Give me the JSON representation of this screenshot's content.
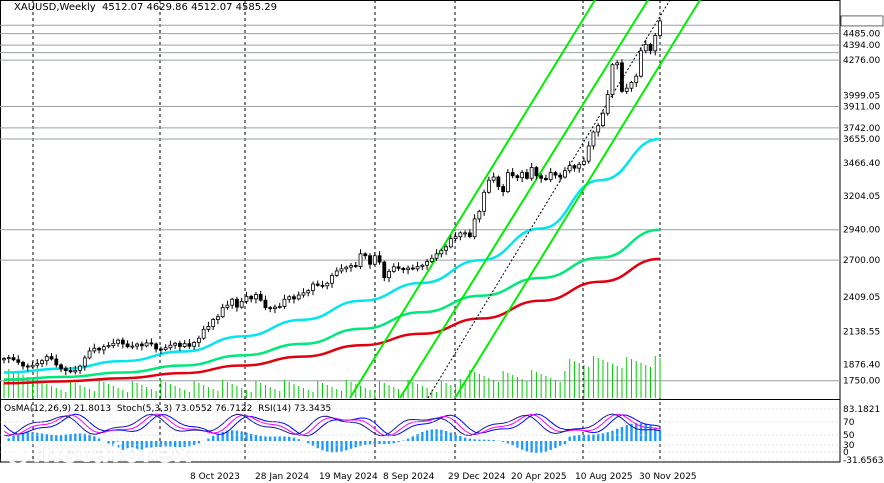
{
  "header": {
    "symbol": "XAUUSD,Weekly",
    "ohlc": "4512.07 4629.86 4512.07 4585.29"
  },
  "indicator_title": "OsMA(12,26,9) 21.8013  Stoch(5,3,3) 73.0552 76.7122  RSI(14) 73.3435",
  "watermark": {
    "brand": "instaforex",
    "tagline": "Instant Forex Trading"
  },
  "colors": {
    "ema_fast": "#00e5ee",
    "ema_mid": "#00e87a",
    "ema_slow": "#e0000f",
    "channel": "#00ee00",
    "volume": "#00cc00",
    "osma": "#1e9bff",
    "stoch_main": "#0000ff",
    "stoch_signal": "#ff00ff"
  },
  "chart_data": {
    "type": "line",
    "title": "XAUUSD,Weekly",
    "price_axis": {
      "range": [
        1614.0,
        4750.0
      ],
      "tick_labels": [
        "4485.00",
        "4394.00",
        "4276.00",
        "3999.05",
        "3911.00",
        "3742.00",
        "3655.00",
        "3466.40",
        "3204.05",
        "2940.00",
        "2700.00",
        "2409.05",
        "2138.55",
        "1876.40",
        "1750.00"
      ],
      "level_lines": [
        4551,
        4485,
        4394,
        4335,
        4276,
        3911,
        3742,
        3655,
        2940,
        2700,
        1750
      ]
    },
    "x_axis": {
      "tick_labels": [
        "8 Oct 2023",
        "28 Jan 2024",
        "19 May 2024",
        "8 Sep 2024",
        "29 Dec 2024",
        "20 Apr 2025",
        "10 Aug 2025",
        "30 Nov 2025"
      ]
    },
    "series": [
      {
        "name": "Close",
        "values": [
          1925,
          1932,
          1915,
          1895,
          1866,
          1860,
          1872,
          1885,
          1908,
          1940,
          1921,
          1875,
          1845,
          1830,
          1820,
          1832,
          1865,
          1930,
          1985,
          2006,
          1993,
          2018,
          2027,
          2045,
          2070,
          2040,
          2018,
          2023,
          2039,
          2025,
          2048,
          2040,
          2000,
          1995,
          2010,
          2030,
          2045,
          2020,
          2042,
          2022,
          2052,
          2085,
          2155,
          2178,
          2232,
          2255,
          2328,
          2345,
          2392,
          2330,
          2375,
          2415,
          2395,
          2430,
          2385,
          2326,
          2318,
          2330,
          2335,
          2392,
          2412,
          2395,
          2425,
          2443,
          2460,
          2512,
          2502,
          2498,
          2518,
          2580,
          2615,
          2632,
          2645,
          2658,
          2650,
          2750,
          2735,
          2668,
          2735,
          2685,
          2562,
          2612,
          2648,
          2635,
          2625,
          2638,
          2632,
          2650,
          2660,
          2690,
          2715,
          2750,
          2778,
          2805,
          2870,
          2885,
          2915,
          2915,
          2885,
          3025,
          3085,
          3235,
          3330,
          3355,
          3280,
          3240,
          3390,
          3365,
          3350,
          3390,
          3345,
          3430,
          3365,
          3345,
          3335,
          3390,
          3370,
          3355,
          3405,
          3445,
          3425,
          3455,
          3480,
          3600,
          3710,
          3760,
          3858,
          4005,
          4240,
          4255,
          4030,
          4055,
          4100,
          4150,
          4350,
          4400,
          4350,
          4470,
          4585
        ]
      },
      {
        "name": "EMA fast",
        "values": [
          1815,
          1845,
          1905,
          1980,
          2100,
          2230,
          2380,
          2520,
          2700,
          2950,
          3330,
          3655
        ]
      },
      {
        "name": "EMA mid",
        "values": [
          1760,
          1780,
          1815,
          1870,
          1950,
          2040,
          2160,
          2290,
          2420,
          2560,
          2720,
          2940
        ]
      },
      {
        "name": "EMA slow",
        "values": [
          1730,
          1745,
          1770,
          1810,
          1870,
          1940,
          2030,
          2120,
          2240,
          2380,
          2530,
          2710
        ]
      }
    ],
    "oscillators": {
      "osma_value": 21.8013,
      "stoch_main": 73.0552,
      "stoch_signal": 76.7122,
      "rsi": 73.3435,
      "scale_labels": [
        "83.1821",
        "70",
        "50",
        "30",
        "0",
        "-31.6563"
      ]
    }
  }
}
